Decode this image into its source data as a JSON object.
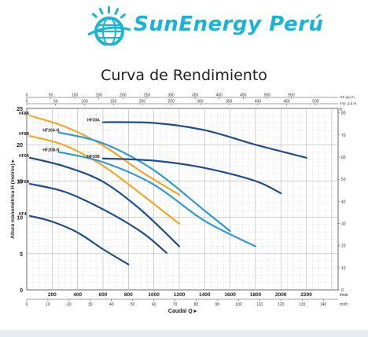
{
  "header": {
    "brand": "SunEnergy Perú"
  },
  "chart_title": "Curva de Rendimiento",
  "colors": {
    "brand": "#1ab3d9",
    "dark_blue": "#1f4e8c",
    "light_blue": "#2e9bd6",
    "orange": "#f5a623",
    "grid": "#b5b5b5"
  },
  "chart_data": {
    "type": "line",
    "ylabel": "Altura manométrica H (metros)",
    "xlabel": "Caudal Q",
    "x_unit": "l/min",
    "ylim": [
      0,
      25
    ],
    "xlim": [
      0,
      2450
    ],
    "y_ticks": [
      0,
      5,
      10,
      15,
      20,
      25
    ],
    "x_ticks": [
      200,
      400,
      600,
      800,
      1000,
      1200,
      1400,
      1600,
      1800,
      2000,
      2200
    ],
    "right_axis": {
      "unit": "ft",
      "ticks": [
        0,
        10,
        20,
        30,
        40,
        50,
        60,
        70,
        80
      ]
    },
    "top_axes": [
      {
        "unit": "US g.p.m.",
        "ticks": [
          0,
          50,
          100,
          150,
          200,
          250,
          300,
          350,
          400,
          450,
          500,
          550
        ]
      },
      {
        "unit": "Imp. g.p.m.",
        "ticks": [
          0,
          50,
          100,
          150,
          200,
          250,
          300,
          350,
          400,
          450,
          500
        ]
      }
    ],
    "bottom_m3_axis": {
      "unit": "m³/h",
      "ticks": [
        0,
        10,
        20,
        30,
        40,
        50,
        60,
        70,
        80,
        90,
        100,
        110,
        120,
        130,
        140
      ]
    },
    "series": [
      {
        "name": "HF8A",
        "color": "#f5a623",
        "points": [
          [
            25,
            24.0
          ],
          [
            300,
            22.5
          ],
          [
            600,
            19.9
          ],
          [
            900,
            16.3
          ],
          [
            1200,
            13.1
          ]
        ]
      },
      {
        "name": "HF8B",
        "color": "#f5a623",
        "points": [
          [
            25,
            21.2
          ],
          [
            300,
            19.9
          ],
          [
            600,
            17.1
          ],
          [
            900,
            13.2
          ],
          [
            1200,
            9.1
          ]
        ]
      },
      {
        "name": "HF20A-N",
        "color": "#2e9bd6",
        "points": [
          [
            250,
            21.7
          ],
          [
            600,
            20.2
          ],
          [
            1000,
            16.5
          ],
          [
            1400,
            10.9
          ],
          [
            1600,
            8.1
          ]
        ]
      },
      {
        "name": "HF20B-N",
        "color": "#2e9bd6",
        "points": [
          [
            250,
            19.0
          ],
          [
            600,
            17.6
          ],
          [
            1000,
            14.5
          ],
          [
            1400,
            9.5
          ],
          [
            1800,
            6.0
          ]
        ]
      },
      {
        "name": "HF30A",
        "color": "#1f4e8c",
        "points": [
          [
            600,
            23.1
          ],
          [
            1000,
            23.0
          ],
          [
            1400,
            22.0
          ],
          [
            1800,
            20.0
          ],
          [
            2200,
            18.2
          ]
        ]
      },
      {
        "name": "HF30B",
        "color": "#1f4e8c",
        "points": [
          [
            600,
            18.1
          ],
          [
            1000,
            17.8
          ],
          [
            1400,
            16.8
          ],
          [
            1800,
            15.0
          ],
          [
            2000,
            13.3
          ]
        ]
      },
      {
        "name": "HF5A",
        "color": "#1f4e8c",
        "points": [
          [
            25,
            18.2
          ],
          [
            300,
            17.0
          ],
          [
            600,
            14.9
          ],
          [
            900,
            11.0
          ],
          [
            1200,
            6.0
          ]
        ]
      },
      {
        "name": "HF6B",
        "color": "#1f4e8c",
        "points": [
          [
            25,
            14.6
          ],
          [
            300,
            13.5
          ],
          [
            600,
            11.1
          ],
          [
            900,
            8.0
          ],
          [
            1100,
            5.1
          ]
        ]
      },
      {
        "name": "HF4",
        "color": "#1f4e8c",
        "points": [
          [
            25,
            10.2
          ],
          [
            200,
            9.4
          ],
          [
            400,
            7.9
          ],
          [
            600,
            5.6
          ],
          [
            800,
            3.5
          ]
        ]
      }
    ]
  }
}
